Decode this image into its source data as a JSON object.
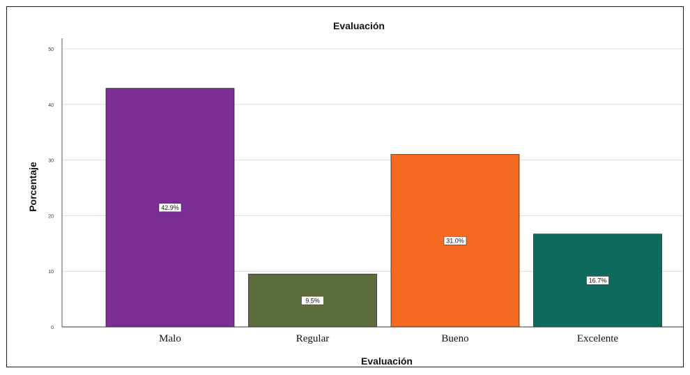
{
  "chart_data": {
    "type": "bar",
    "title": "Evaluación",
    "xlabel": "Evaluación",
    "ylabel": "Porcentaje",
    "ylim": [
      0,
      50
    ],
    "yticks": [
      0,
      10,
      20,
      30,
      40,
      50
    ],
    "grid": true,
    "categories": [
      "Malo",
      "Regular",
      "Bueno",
      "Excelente"
    ],
    "values": [
      42.9,
      9.5,
      31.0,
      16.7
    ],
    "data_labels": [
      "42.9%",
      "9.5%",
      "31.0%",
      "16.7%"
    ],
    "colors": [
      "#7a2d92",
      "#5d6e3c",
      "#f56a20",
      "#0e6a5c"
    ]
  }
}
